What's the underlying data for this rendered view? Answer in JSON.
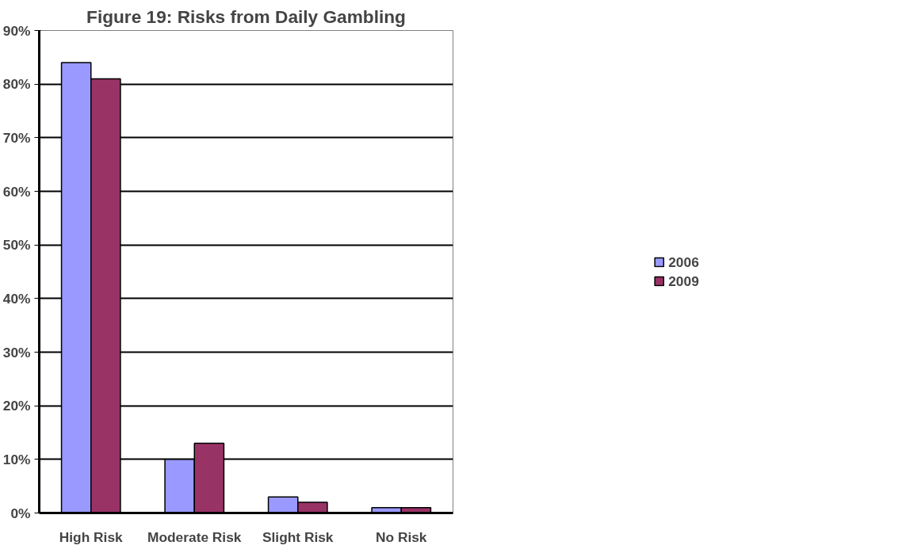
{
  "chart_data": {
    "type": "bar",
    "title": "Figure 19: Risks from Daily Gambling",
    "categories": [
      "High Risk",
      "Moderate Risk",
      "Slight Risk",
      "No Risk"
    ],
    "series": [
      {
        "name": "2006",
        "color": "#9999ff",
        "values": [
          84,
          10,
          3,
          1
        ]
      },
      {
        "name": "2009",
        "color": "#993366",
        "values": [
          81,
          13,
          2,
          1
        ]
      }
    ],
    "ylim": [
      0,
      90
    ],
    "yticks": [
      {
        "value": 0,
        "label": "0%"
      },
      {
        "value": 10,
        "label": "10%"
      },
      {
        "value": 20,
        "label": "20%"
      },
      {
        "value": 30,
        "label": "30%"
      },
      {
        "value": 40,
        "label": "40%"
      },
      {
        "value": 50,
        "label": "50%"
      },
      {
        "value": 60,
        "label": "60%"
      },
      {
        "value": 70,
        "label": "70%"
      },
      {
        "value": 80,
        "label": "80%"
      },
      {
        "value": 90,
        "label": "90%"
      }
    ],
    "grid": "y",
    "legend": "right"
  }
}
